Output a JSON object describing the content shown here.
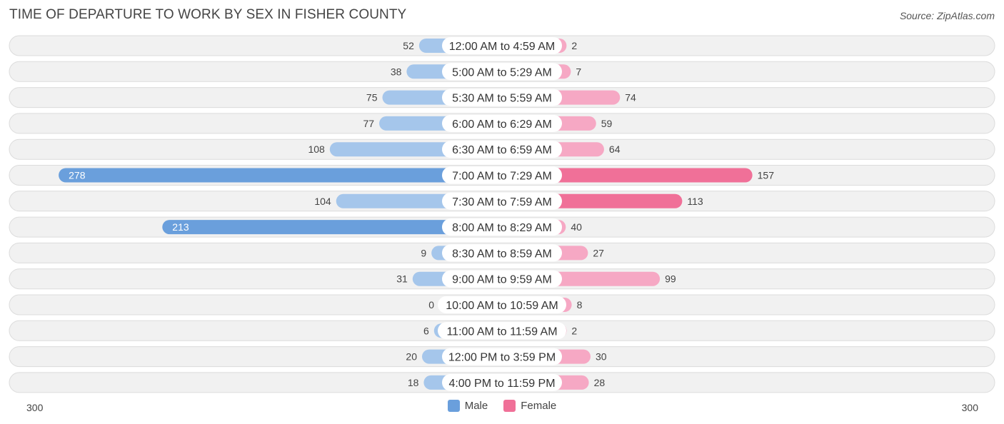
{
  "title": "TIME OF DEPARTURE TO WORK BY SEX IN FISHER COUNTY",
  "source": "Source: ZipAtlas.com",
  "colors": {
    "male_light": "#a5c6eb",
    "male_dark": "#6a9fdc",
    "female_light": "#f6a8c4",
    "female_dark": "#f07098",
    "row_bg": "#f1f1f1",
    "row_border": "#dcdcdc"
  },
  "chart_data": {
    "type": "bar",
    "orientation": "diverging-horizontal",
    "categories": [
      "12:00 AM to 4:59 AM",
      "5:00 AM to 5:29 AM",
      "5:30 AM to 5:59 AM",
      "6:00 AM to 6:29 AM",
      "6:30 AM to 6:59 AM",
      "7:00 AM to 7:29 AM",
      "7:30 AM to 7:59 AM",
      "8:00 AM to 8:29 AM",
      "8:30 AM to 8:59 AM",
      "9:00 AM to 9:59 AM",
      "10:00 AM to 10:59 AM",
      "11:00 AM to 11:59 AM",
      "12:00 PM to 3:59 PM",
      "4:00 PM to 11:59 PM"
    ],
    "series": [
      {
        "name": "Male",
        "values": [
          52,
          38,
          75,
          77,
          108,
          278,
          104,
          213,
          9,
          31,
          0,
          6,
          20,
          18
        ]
      },
      {
        "name": "Female",
        "values": [
          2,
          7,
          74,
          59,
          64,
          157,
          113,
          40,
          27,
          99,
          8,
          2,
          30,
          28
        ]
      }
    ],
    "axis_max": 300,
    "axis_left_label": "300",
    "axis_right_label": "300",
    "legend": [
      "Male",
      "Female"
    ],
    "legend_position": "bottom-center"
  }
}
